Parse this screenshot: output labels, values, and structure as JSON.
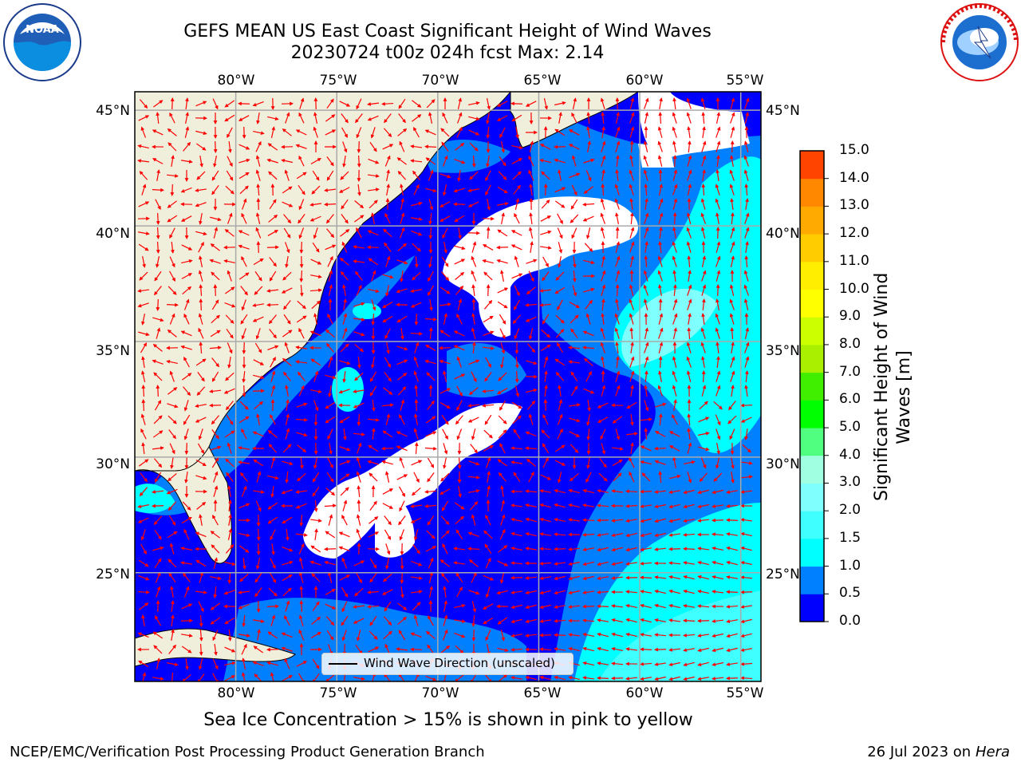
{
  "header": {
    "title_line1": "GEFS MEAN US East Coast Significant Height of Wind Waves",
    "title_line2": "20230724 t00z 024h fcst   Max: 2.14"
  },
  "logos": {
    "noaa": {
      "icon": "noaa-logo",
      "text": "NOAA",
      "ring_text": "NATIONAL OCEANIC AND ATMOSPHERIC ADMINISTRATION · U.S. DEPARTMENT OF COMMERCE"
    },
    "nws": {
      "icon": "nws-logo",
      "ring_text": "NATIONAL WEATHER SERVICE"
    }
  },
  "map": {
    "projection": "lat-lon",
    "lon_range": [
      -85,
      -54
    ],
    "lat_range": [
      20.3,
      45.8
    ],
    "lon_ticks": [
      "80°W",
      "75°W",
      "70°W",
      "65°W",
      "60°W",
      "55°W"
    ],
    "lat_ticks": [
      "45°N",
      "40°N",
      "35°N",
      "30°N",
      "25°N"
    ],
    "grid": true,
    "colors": {
      "land": "#efefdc",
      "coast": "#000000",
      "arrow": "#ff0000",
      "gridline": "#aaaaaa",
      "no_data": "#ffffff"
    }
  },
  "legend": {
    "line_label": "Wind Wave Direction (unscaled)"
  },
  "colorbar": {
    "label": "Significant Height of Wind Waves [m]",
    "title_line1": "Significant Height of Wind",
    "title_line2": "Waves [m]",
    "levels": [
      "0.0",
      "0.5",
      "1.0",
      "1.5",
      "2.0",
      "3.0",
      "4.0",
      "5.0",
      "6.0",
      "7.0",
      "8.0",
      "9.0",
      "10.0",
      "11.0",
      "12.0",
      "13.0",
      "14.0",
      "15.0"
    ],
    "colors": [
      "#0000ff",
      "#0080ff",
      "#00ffff",
      "#40ffff",
      "#80ffff",
      "#a0ffe0",
      "#50ff80",
      "#00ff00",
      "#40ee00",
      "#aaee00",
      "#ccff00",
      "#ffff00",
      "#ffee00",
      "#ffcc00",
      "#ffaa00",
      "#ff8800",
      "#ff4400",
      "#ff0000"
    ]
  },
  "caption": "Sea Ice Concentration > 15% is shown in pink to yellow",
  "footer": {
    "credit": "NCEP/EMC/Verification Post Processing Product Generation Branch",
    "date_prefix": "26 Jul 2023 on ",
    "host": "Hera"
  }
}
